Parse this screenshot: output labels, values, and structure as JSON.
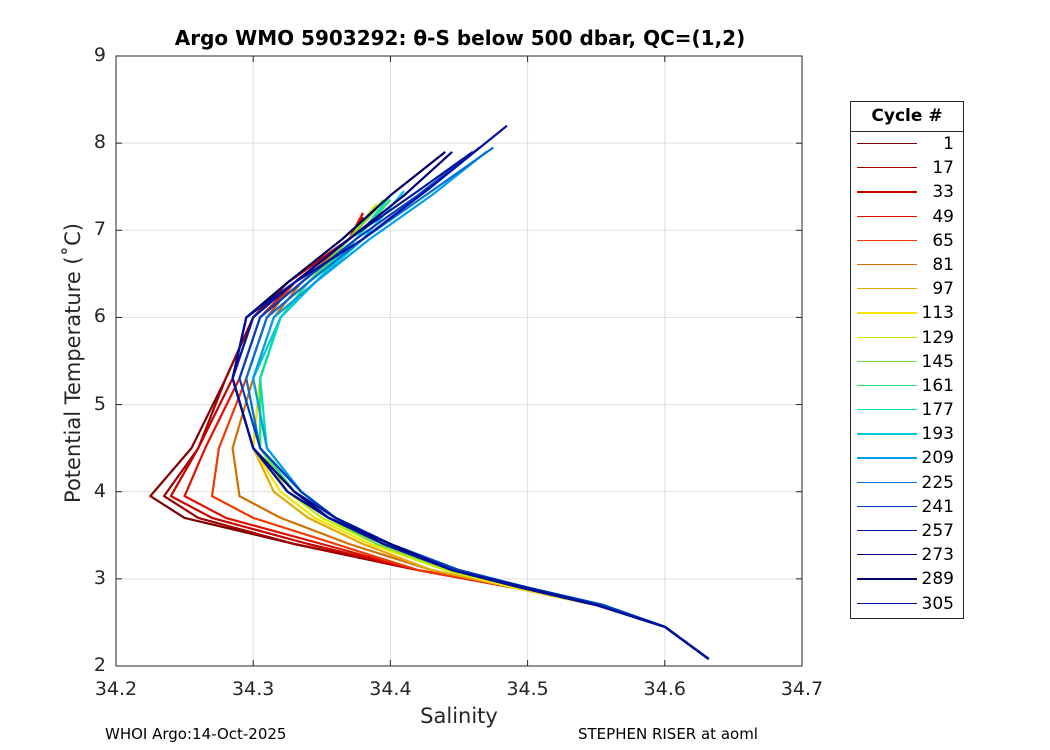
{
  "chart_data": {
    "type": "line",
    "title": "Argo WMO 5903292: θ-S below 500 dbar,  QC=(1,2)",
    "xlabel": "Salinity",
    "ylabel": "Potential Temperature (˚C)",
    "xlim": [
      34.2,
      34.7
    ],
    "ylim": [
      2,
      9
    ],
    "xticks": [
      "34.2",
      "34.3",
      "34.4",
      "34.5",
      "34.6",
      "34.7"
    ],
    "yticks": [
      "2",
      "3",
      "4",
      "5",
      "6",
      "7",
      "8",
      "9"
    ],
    "grid": true,
    "legend_title": "Cycle #",
    "legend_position": "outside-right",
    "series": [
      {
        "name": "1",
        "color": "#800000",
        "salinity": [
          34.632,
          34.6,
          34.55,
          34.49,
          34.42,
          34.33,
          34.25,
          34.225,
          34.255,
          34.28,
          34.3,
          34.325,
          34.37,
          34.38
        ],
        "theta": [
          2.08,
          2.45,
          2.7,
          2.9,
          3.1,
          3.4,
          3.7,
          3.95,
          4.5,
          5.3,
          6.0,
          6.4,
          6.9,
          7.1
        ]
      },
      {
        "name": "17",
        "color": "#9c0000",
        "salinity": [
          34.632,
          34.6,
          34.55,
          34.49,
          34.42,
          34.33,
          34.26,
          34.235,
          34.26,
          34.28,
          34.3,
          34.325,
          34.37,
          34.38
        ],
        "theta": [
          2.08,
          2.45,
          2.7,
          2.9,
          3.1,
          3.4,
          3.7,
          3.95,
          4.5,
          5.3,
          6.0,
          6.4,
          6.9,
          7.15
        ]
      },
      {
        "name": "33",
        "color": "#c80000",
        "salinity": [
          34.632,
          34.6,
          34.55,
          34.49,
          34.42,
          34.34,
          34.27,
          34.24,
          34.26,
          34.285,
          34.3,
          34.325,
          34.37,
          34.38
        ],
        "theta": [
          2.08,
          2.45,
          2.7,
          2.9,
          3.1,
          3.4,
          3.7,
          3.95,
          4.5,
          5.3,
          6.0,
          6.4,
          6.9,
          7.2
        ]
      },
      {
        "name": "49",
        "color": "#e01000",
        "salinity": [
          34.632,
          34.6,
          34.55,
          34.49,
          34.42,
          34.35,
          34.28,
          34.25,
          34.265,
          34.29,
          34.305,
          34.33,
          34.37,
          34.38
        ],
        "theta": [
          2.08,
          2.45,
          2.7,
          2.9,
          3.1,
          3.4,
          3.7,
          3.95,
          4.5,
          5.3,
          6.0,
          6.4,
          6.9,
          7.2
        ]
      },
      {
        "name": "65",
        "color": "#f03800",
        "salinity": [
          34.632,
          34.6,
          34.55,
          34.49,
          34.42,
          34.36,
          34.3,
          34.27,
          34.275,
          34.295,
          34.31,
          34.33,
          34.37,
          34.385
        ],
        "theta": [
          2.08,
          2.45,
          2.7,
          2.9,
          3.1,
          3.4,
          3.7,
          3.95,
          4.5,
          5.3,
          6.0,
          6.4,
          6.9,
          7.2
        ]
      },
      {
        "name": "81",
        "color": "#d07000",
        "salinity": [
          34.632,
          34.6,
          34.55,
          34.49,
          34.43,
          34.37,
          34.32,
          34.29,
          34.285,
          34.3,
          34.315,
          34.335,
          34.37,
          34.39
        ],
        "theta": [
          2.08,
          2.45,
          2.7,
          2.9,
          3.1,
          3.4,
          3.7,
          3.95,
          4.5,
          5.3,
          6.0,
          6.4,
          6.9,
          7.25
        ]
      },
      {
        "name": "97",
        "color": "#e6a800",
        "salinity": [
          34.632,
          34.6,
          34.55,
          34.49,
          34.43,
          34.38,
          34.34,
          34.315,
          34.3,
          34.305,
          34.32,
          34.34,
          34.37,
          34.39
        ],
        "theta": [
          2.08,
          2.45,
          2.7,
          2.9,
          3.1,
          3.4,
          3.7,
          4.0,
          4.5,
          5.3,
          6.0,
          6.4,
          6.9,
          7.25
        ]
      },
      {
        "name": "113",
        "color": "#f5e400",
        "salinity": [
          34.632,
          34.6,
          34.55,
          34.49,
          34.44,
          34.385,
          34.345,
          34.32,
          34.3,
          34.305,
          34.32,
          34.34,
          34.37,
          34.39
        ],
        "theta": [
          2.08,
          2.45,
          2.7,
          2.9,
          3.1,
          3.4,
          3.7,
          4.0,
          4.5,
          5.3,
          6.0,
          6.4,
          6.9,
          7.3
        ]
      },
      {
        "name": "129",
        "color": "#b8f000",
        "salinity": [
          34.632,
          34.6,
          34.55,
          34.495,
          34.44,
          34.39,
          34.35,
          34.325,
          34.305,
          34.305,
          34.32,
          34.34,
          34.37,
          34.39
        ],
        "theta": [
          2.08,
          2.45,
          2.7,
          2.9,
          3.1,
          3.4,
          3.7,
          4.0,
          4.5,
          5.3,
          6.0,
          6.4,
          6.9,
          7.3
        ]
      },
      {
        "name": "145",
        "color": "#70e040",
        "salinity": [
          34.632,
          34.6,
          34.55,
          34.495,
          34.445,
          34.39,
          34.355,
          34.33,
          34.305,
          34.305,
          34.32,
          34.34,
          34.37,
          34.395
        ],
        "theta": [
          2.08,
          2.45,
          2.7,
          2.9,
          3.1,
          3.4,
          3.7,
          4.0,
          4.5,
          5.3,
          6.0,
          6.4,
          6.9,
          7.35
        ]
      },
      {
        "name": "161",
        "color": "#30e070",
        "salinity": [
          34.632,
          34.6,
          34.55,
          34.5,
          34.445,
          34.395,
          34.355,
          34.33,
          34.305,
          34.305,
          34.32,
          34.34,
          34.375,
          34.4
        ],
        "theta": [
          2.08,
          2.45,
          2.7,
          2.9,
          3.1,
          3.4,
          3.7,
          4.0,
          4.5,
          5.3,
          6.0,
          6.4,
          6.9,
          7.35
        ]
      },
      {
        "name": "177",
        "color": "#00e0b0",
        "salinity": [
          34.632,
          34.6,
          34.555,
          34.5,
          34.45,
          34.395,
          34.36,
          34.335,
          34.31,
          34.305,
          34.32,
          34.345,
          34.375,
          34.4
        ],
        "theta": [
          2.08,
          2.45,
          2.7,
          2.9,
          3.1,
          3.4,
          3.7,
          4.0,
          4.5,
          5.3,
          6.0,
          6.4,
          6.9,
          7.4
        ]
      },
      {
        "name": "193",
        "color": "#00c8e0",
        "salinity": [
          34.632,
          34.6,
          34.555,
          34.5,
          34.45,
          34.4,
          34.36,
          34.335,
          34.31,
          34.3,
          34.32,
          34.345,
          34.38,
          34.41
        ],
        "theta": [
          2.08,
          2.45,
          2.7,
          2.9,
          3.1,
          3.4,
          3.7,
          4.0,
          4.5,
          5.3,
          6.0,
          6.4,
          6.9,
          7.45
        ]
      },
      {
        "name": "209",
        "color": "#00a0e8",
        "salinity": [
          34.632,
          34.6,
          34.555,
          34.5,
          34.45,
          34.4,
          34.36,
          34.335,
          34.31,
          34.3,
          34.315,
          34.345,
          34.385,
          34.43,
          34.47
        ],
        "theta": [
          2.08,
          2.45,
          2.7,
          2.9,
          3.1,
          3.4,
          3.7,
          4.0,
          4.5,
          5.3,
          6.0,
          6.4,
          6.9,
          7.4,
          7.9
        ]
      },
      {
        "name": "225",
        "color": "#0070d8",
        "salinity": [
          34.632,
          34.6,
          34.555,
          34.5,
          34.45,
          34.4,
          34.36,
          34.335,
          34.305,
          34.295,
          34.31,
          34.34,
          34.38,
          34.43,
          34.475
        ],
        "theta": [
          2.08,
          2.45,
          2.7,
          2.9,
          3.1,
          3.4,
          3.7,
          4.0,
          4.5,
          5.3,
          6.0,
          6.4,
          6.9,
          7.45,
          7.95
        ]
      },
      {
        "name": "241",
        "color": "#0040c0",
        "salinity": [
          34.632,
          34.6,
          34.555,
          34.5,
          34.45,
          34.4,
          34.36,
          34.335,
          34.305,
          34.29,
          34.305,
          34.335,
          34.375,
          34.42,
          34.465
        ],
        "theta": [
          2.08,
          2.45,
          2.7,
          2.9,
          3.1,
          3.4,
          3.7,
          4.0,
          4.5,
          5.3,
          6.0,
          6.4,
          6.9,
          7.4,
          7.95
        ]
      },
      {
        "name": "257",
        "color": "#0018a0",
        "salinity": [
          34.632,
          34.6,
          34.55,
          34.5,
          34.445,
          34.4,
          34.36,
          34.33,
          34.3,
          34.285,
          34.3,
          34.33,
          34.37,
          34.42,
          34.46
        ],
        "theta": [
          2.08,
          2.45,
          2.7,
          2.9,
          3.1,
          3.4,
          3.7,
          4.0,
          4.5,
          5.3,
          6.0,
          6.4,
          6.9,
          7.45,
          7.9
        ]
      },
      {
        "name": "273",
        "color": "#000080",
        "salinity": [
          34.632,
          34.6,
          34.55,
          34.495,
          34.445,
          34.4,
          34.355,
          34.33,
          34.3,
          34.285,
          34.295,
          34.33,
          34.37,
          34.41,
          34.445
        ],
        "theta": [
          2.08,
          2.45,
          2.7,
          2.9,
          3.1,
          3.4,
          3.7,
          4.0,
          4.5,
          5.3,
          6.0,
          6.4,
          6.9,
          7.4,
          7.9
        ]
      },
      {
        "name": "289",
        "color": "#000060",
        "salinity": [
          34.632,
          34.6,
          34.55,
          34.495,
          34.445,
          34.395,
          34.355,
          34.325,
          34.3,
          34.285,
          34.295,
          34.325,
          34.365,
          34.4,
          34.44
        ],
        "theta": [
          2.08,
          2.45,
          2.7,
          2.9,
          3.1,
          3.4,
          3.7,
          4.0,
          4.5,
          5.3,
          6.0,
          6.4,
          6.9,
          7.4,
          7.9
        ]
      },
      {
        "name": "305",
        "color": "#0010a0",
        "salinity": [
          34.632,
          34.6,
          34.55,
          34.495,
          34.445,
          34.395,
          34.355,
          34.325,
          34.3,
          34.285,
          34.295,
          34.33,
          34.38,
          34.43,
          34.485
        ],
        "theta": [
          2.08,
          2.45,
          2.7,
          2.9,
          3.1,
          3.4,
          3.7,
          4.0,
          4.5,
          5.3,
          6.0,
          6.4,
          6.9,
          7.5,
          8.2
        ]
      }
    ]
  },
  "footer": {
    "left": "WHOI Argo:14-Oct-2025",
    "right": "STEPHEN RISER at aoml"
  }
}
